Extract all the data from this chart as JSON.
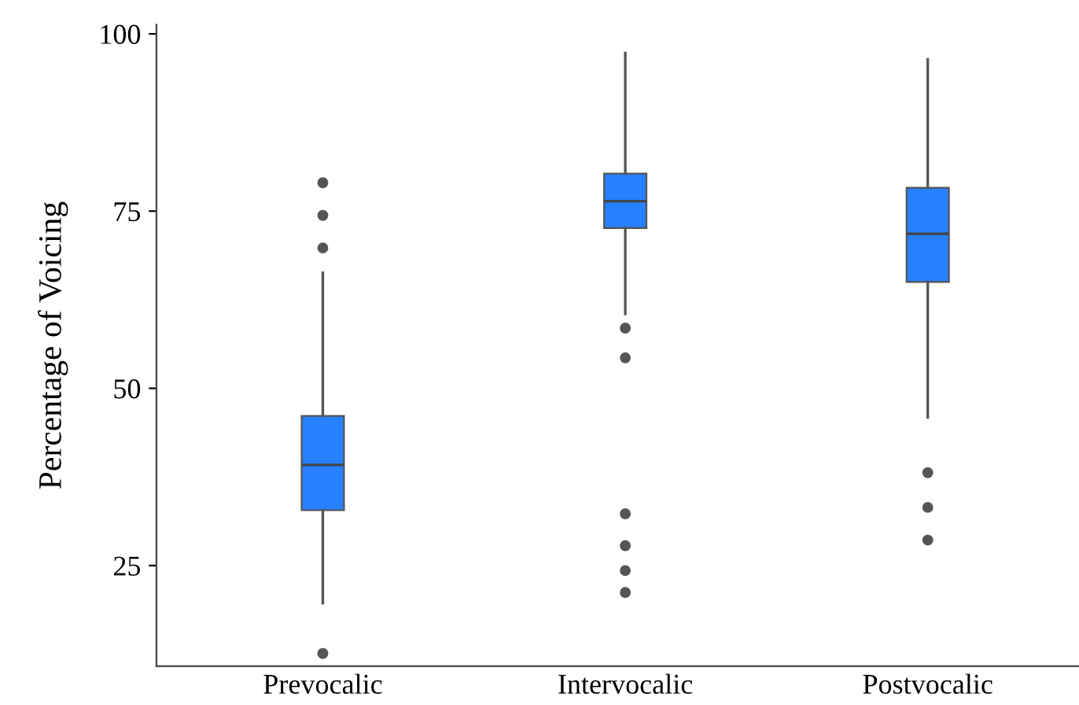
{
  "chart_data": {
    "type": "box",
    "ylabel": "Percentage of Voicing",
    "categories": [
      "Prevocalic",
      "Intervocalic",
      "Postvocalic"
    ],
    "ylim": [
      10.8,
      101.3
    ],
    "yticks": [
      25,
      50,
      75,
      100
    ],
    "grid": false,
    "color": "#2680ff",
    "boxes": [
      {
        "low": 19.7,
        "q1": 32.8,
        "median": 39.2,
        "q3": 46.1,
        "high": 66.3,
        "outliers": [
          12.6,
          69.8,
          74.4,
          79
        ]
      },
      {
        "low": 60.5,
        "q1": 72.6,
        "median": 76.4,
        "q3": 80.3,
        "high": 97.3,
        "outliers": [
          21.2,
          24.3,
          27.8,
          32.3,
          54.3,
          58.5
        ]
      },
      {
        "low": 45.9,
        "q1": 65,
        "median": 71.8,
        "q3": 78.3,
        "high": 96.4,
        "outliers": [
          28.6,
          33.2,
          38.1
        ]
      }
    ]
  }
}
